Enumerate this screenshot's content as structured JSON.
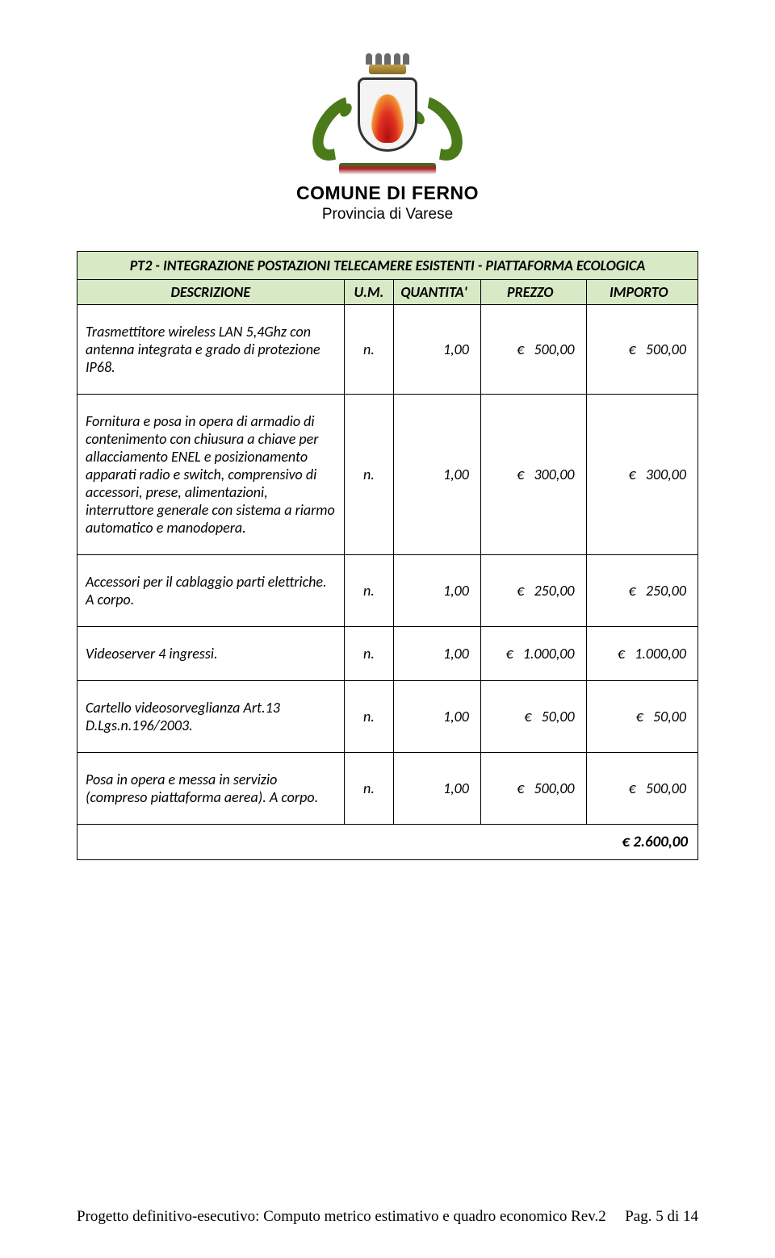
{
  "header": {
    "comune": "COMUNE DI FERNO",
    "provincia": "Provincia di Varese"
  },
  "table": {
    "title": "PT2 - INTEGRAZIONE POSTAZIONI TELECAMERE ESISTENTI - PIATTAFORMA ECOLOGICA",
    "columns": {
      "desc": "DESCRIZIONE",
      "um": "U.M.",
      "qty": "QUANTITA'",
      "prz": "PREZZO",
      "imp": "IMPORTO"
    },
    "rows": [
      {
        "desc": "Trasmettitore wireless LAN 5,4Ghz con antenna integrata e grado di protezione IP68.",
        "um": "n.",
        "qty": "1,00",
        "prz": "500,00",
        "imp": "500,00"
      },
      {
        "desc": "Fornitura e posa in opera di armadio di contenimento con chiusura a chiave per allacciamento ENEL e posizionamento apparati radio e switch, comprensivo di accessori, prese, alimentazioni, interruttore generale con sistema a riarmo automatico e manodopera.",
        "um": "n.",
        "qty": "1,00",
        "prz": "300,00",
        "imp": "300,00"
      },
      {
        "desc": "Accessori per il cablaggio parti elettriche. A corpo.",
        "um": "n.",
        "qty": "1,00",
        "prz": "250,00",
        "imp": "250,00"
      },
      {
        "desc": "Videoserver 4 ingressi.",
        "um": "n.",
        "qty": "1,00",
        "prz": "1.000,00",
        "imp": "1.000,00"
      },
      {
        "desc": "Cartello videosorveglianza Art.13 D.Lgs.n.196/2003.",
        "um": "n.",
        "qty": "1,00",
        "prz": "50,00",
        "imp": "50,00"
      },
      {
        "desc": "Posa in opera e messa in servizio (compreso piattaforma aerea). A corpo.",
        "um": "n.",
        "qty": "1,00",
        "prz": "500,00",
        "imp": "500,00"
      }
    ],
    "total": "€ 2.600,00"
  },
  "footer": {
    "left": "Progetto definitivo-esecutivo: Computo metrico estimativo e quadro economico Rev.2",
    "right": "Pag. 5 di 14"
  },
  "colors": {
    "header_bg": "#d8e9c6",
    "border": "#000000"
  }
}
